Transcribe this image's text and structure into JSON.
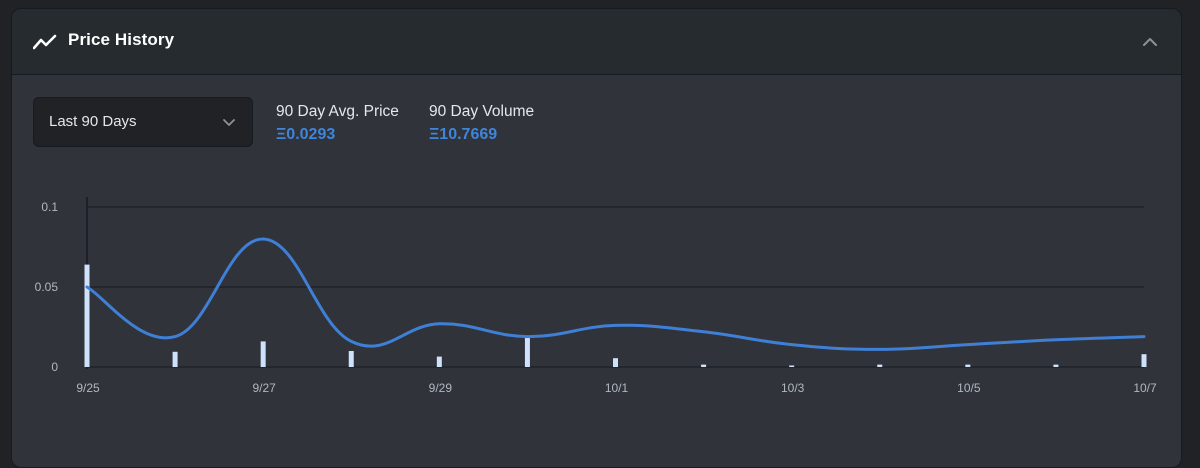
{
  "panel": {
    "title": "Price History",
    "icon": "trending-line-icon",
    "collapse_icon": "chevron-up-icon"
  },
  "filter": {
    "selected": "Last 90 Days",
    "icon": "chevron-down-icon"
  },
  "stats": {
    "avg_price_label": "90 Day Avg. Price",
    "avg_price_value": "Ξ0.0293",
    "volume_label": "90 Day Volume",
    "volume_value": "Ξ10.7669"
  },
  "colors": {
    "line": "#3f7fd6",
    "bars": "#cfe2fb",
    "accent": "#3f85d9"
  },
  "chart_data": {
    "type": "line",
    "x_start_day": 0,
    "x_end_day": 12,
    "ylim": [
      0,
      0.1
    ],
    "y_ticks": [
      0,
      0.05,
      0.1
    ],
    "y_tick_labels": [
      "0",
      "0.05",
      "0.1"
    ],
    "x_ticks": [
      0,
      2,
      4,
      6,
      8,
      10,
      12
    ],
    "x_tick_labels": [
      "9/25",
      "9/27",
      "9/29",
      "10/1",
      "10/3",
      "10/5",
      "10/7"
    ],
    "series": [
      {
        "name": "Avg. Price",
        "style": "smooth-line",
        "x": [
          0,
          1,
          2,
          3,
          4,
          5,
          6,
          7,
          8,
          9,
          10,
          11,
          12
        ],
        "values": [
          0.05,
          0.019,
          0.08,
          0.016,
          0.027,
          0.019,
          0.026,
          0.022,
          0.014,
          0.011,
          0.014,
          0.017,
          0.019
        ]
      },
      {
        "name": "Volume",
        "style": "bar",
        "x": [
          0,
          1,
          2,
          3,
          4,
          5,
          6,
          7,
          8,
          9,
          10,
          11,
          12
        ],
        "values": [
          0.064,
          0.0095,
          0.016,
          0.01,
          0.0065,
          0.019,
          0.0055,
          0.0015,
          0.0005,
          0.0015,
          0.0015,
          0.0015,
          0.008
        ]
      }
    ],
    "title": "",
    "xlabel": "",
    "ylabel": "",
    "grid": true
  }
}
